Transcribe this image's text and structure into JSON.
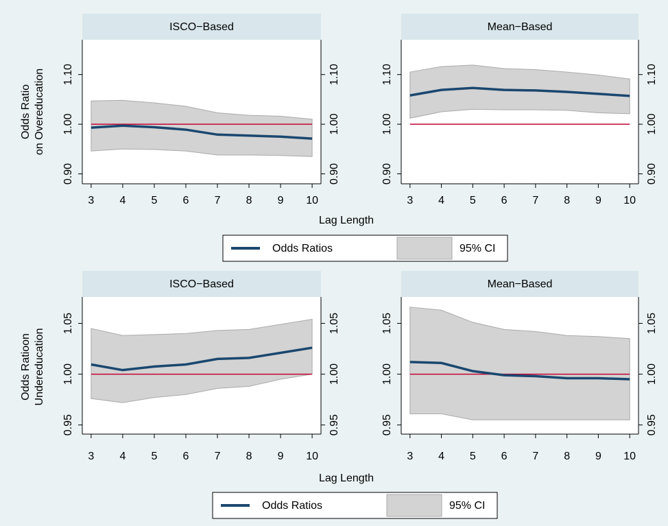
{
  "chart_data": [
    {
      "type": "line",
      "ylabel": [
        "Odds Ratio",
        "on Overeducation"
      ],
      "xlabel": "Lag Length",
      "legend": [
        {
          "name": "Odds Ratios",
          "color": "#1a476f"
        },
        {
          "name": "95% CI",
          "color": "#d3d3d3"
        }
      ],
      "reference": {
        "value": 1,
        "color": "#c10534"
      },
      "x": [
        3,
        4,
        5,
        6,
        7,
        8,
        9,
        10
      ],
      "xlim": [
        2.72,
        10.28
      ],
      "xticks": [
        3,
        4,
        5,
        6,
        7,
        8,
        9,
        10
      ],
      "ylim": [
        0.88,
        1.17
      ],
      "yticks": [
        {
          "value": 0.9,
          "label": "0.90"
        },
        {
          "value": 1,
          "label": "1.00"
        },
        {
          "value": 1.1,
          "label": "1.10"
        }
      ],
      "panels": [
        {
          "title": "ISCO−Based",
          "values": [
            0.993,
            0.997,
            0.994,
            0.989,
            0.979,
            0.977,
            0.975,
            0.971
          ],
          "ci_lower": [
            0.946,
            0.95,
            0.949,
            0.946,
            0.938,
            0.938,
            0.937,
            0.935
          ],
          "ci_upper": [
            1.047,
            1.048,
            1.043,
            1.036,
            1.023,
            1.018,
            1.016,
            1.01
          ]
        },
        {
          "title": "Mean−Based",
          "values": [
            1.058,
            1.069,
            1.073,
            1.069,
            1.068,
            1.065,
            1.061,
            1.057
          ],
          "ci_lower": [
            1.012,
            1.025,
            1.03,
            1.029,
            1.029,
            1.028,
            1.023,
            1.021
          ],
          "ci_upper": [
            1.105,
            1.116,
            1.119,
            1.112,
            1.11,
            1.105,
            1.099,
            1.091
          ]
        }
      ]
    },
    {
      "type": "line",
      "ylabel": [
        "Odds Ratioon",
        "Undereducation"
      ],
      "xlabel": "Lag Length",
      "legend": [
        {
          "name": "Odds Ratios",
          "color": "#1a476f"
        },
        {
          "name": "95% CI",
          "color": "#d3d3d3"
        }
      ],
      "reference": {
        "value": 1,
        "color": "#c10534"
      },
      "x": [
        3,
        4,
        5,
        6,
        7,
        8,
        9,
        10
      ],
      "xlim": [
        2.72,
        10.28
      ],
      "xticks": [
        3,
        4,
        5,
        6,
        7,
        8,
        9,
        10
      ],
      "ylim": [
        0.941,
        1.076
      ],
      "yticks": [
        {
          "value": 0.95,
          "label": "0.95"
        },
        {
          "value": 1,
          "label": "1.00"
        },
        {
          "value": 1.05,
          "label": "1.05"
        }
      ],
      "panels": [
        {
          "title": "ISCO−Based",
          "values": [
            1.0095,
            1.004,
            1.0075,
            1.0095,
            1.015,
            1.016,
            1.021,
            1.026
          ],
          "ci_lower": [
            0.976,
            0.972,
            0.977,
            0.98,
            0.986,
            0.988,
            0.995,
            1.0
          ],
          "ci_upper": [
            1.045,
            1.038,
            1.039,
            1.04,
            1.043,
            1.044,
            1.049,
            1.054
          ]
        },
        {
          "title": "Mean−Based",
          "values": [
            1.012,
            1.011,
            1.003,
            0.999,
            0.998,
            0.996,
            0.996,
            0.995
          ],
          "ci_lower": [
            0.961,
            0.961,
            0.955,
            0.955,
            0.955,
            0.955,
            0.955,
            0.955
          ],
          "ci_upper": [
            1.066,
            1.063,
            1.051,
            1.044,
            1.042,
            1.038,
            1.037,
            1.035
          ]
        }
      ]
    }
  ]
}
